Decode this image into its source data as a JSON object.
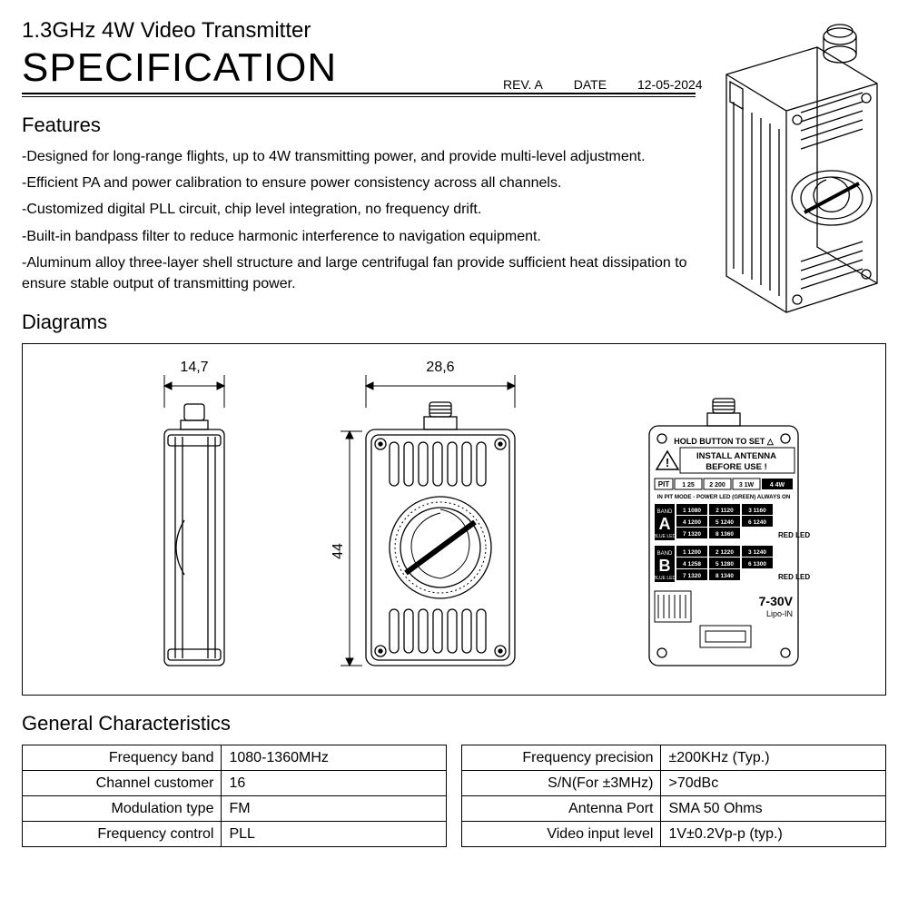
{
  "header": {
    "subtitle": "1.3GHz 4W Video Transmitter",
    "title": "SPECIFICATION",
    "rev": "REV. A",
    "date_label": "DATE",
    "date": "12-05-2024"
  },
  "features": {
    "heading": "Features",
    "items": [
      "-Designed for long-range flights, up to 4W transmitting power, and provide multi-level adjustment.",
      "-Efficient PA and power calibration to ensure power consistency across all channels.",
      "-Customized digital PLL circuit, chip level integration, no frequency drift.",
      "-Built-in bandpass filter to reduce harmonic interference to navigation equipment.",
      "-Aluminum alloy three-layer shell structure and large centrifugal fan provide sufficient heat dissipation to ensure stable output of transmitting power."
    ]
  },
  "diagrams": {
    "heading": "Diagrams",
    "dim_width_side": "14,7",
    "dim_width_front": "28,6",
    "dim_height": "44",
    "back_label_hold": "HOLD BUTTON TO SET △",
    "back_label_install1": "INSTALL ANTENNA",
    "back_label_install2": "BEFORE USE !",
    "back_pit": "PIT",
    "back_pit_vals": [
      "1 25",
      "2 200",
      "3 1W",
      "4 4W"
    ],
    "back_pit_mode": "IN PIT MODE - POWER LED (GREEN) ALWAYS ON",
    "back_band_a": "BAND A",
    "back_band_a_sub": "BLUE LED",
    "back_band_b": "BAND B",
    "back_band_b_sub": "BLUE LED",
    "back_red_led": "RED LED",
    "back_voltage": "7-30V",
    "back_lipo": "Lipo-IN",
    "band_a_rows": [
      [
        "1 1080",
        "2 1120",
        "3 1160"
      ],
      [
        "4 1200",
        "5 1240",
        "6 1240"
      ],
      [
        "7 1320",
        "8 1360",
        ""
      ]
    ],
    "band_b_rows": [
      [
        "1 1200",
        "2 1220",
        "3 1240"
      ],
      [
        "4 1258",
        "5 1280",
        "6 1300"
      ],
      [
        "7 1320",
        "8 1340",
        ""
      ]
    ]
  },
  "general": {
    "heading": "General Characteristics",
    "left": [
      [
        "Frequency band",
        "1080-1360MHz"
      ],
      [
        "Channel customer",
        "16"
      ],
      [
        "Modulation type",
        "FM"
      ],
      [
        "Frequency control",
        "PLL"
      ]
    ],
    "right": [
      [
        "Frequency precision",
        "±200KHz (Typ.)"
      ],
      [
        "S/N(For ±3MHz)",
        ">70dBc"
      ],
      [
        "Antenna Port",
        "SMA  50 Ohms"
      ],
      [
        "Video input level",
        "1V±0.2Vp-p (typ.)"
      ]
    ]
  },
  "style": {
    "stroke": "#000000",
    "stroke_thin": 1,
    "stroke_med": 1.4,
    "fill_bg": "#ffffff"
  }
}
